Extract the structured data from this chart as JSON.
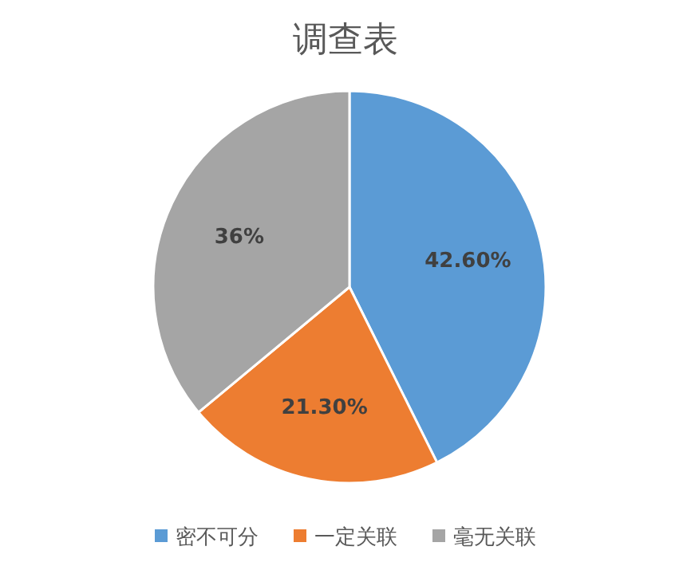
{
  "chart_data": {
    "type": "pie",
    "title": "调查表",
    "categories": [
      "密不可分",
      "一定关联",
      "毫无关联"
    ],
    "values": [
      42.6,
      21.3,
      36
    ],
    "colors": [
      "#5b9bd5",
      "#ed7d31",
      "#a5a5a5"
    ],
    "value_labels": [
      "42.60%",
      "21.30%",
      "36%"
    ],
    "legend": "bottom"
  }
}
